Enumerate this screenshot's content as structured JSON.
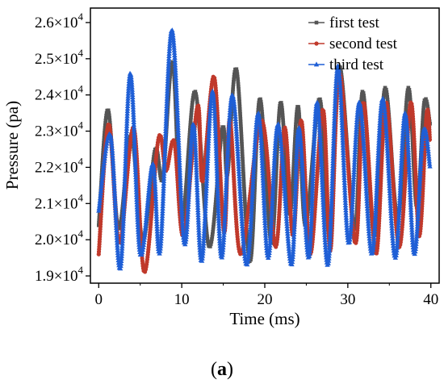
{
  "chart_data": {
    "type": "line",
    "title": "",
    "xlabel": "Time (ms)",
    "ylabel": "Pressure (pa)",
    "xlim": [
      -1,
      41
    ],
    "ylim": [
      18800,
      26400
    ],
    "x_ticks": [
      0,
      10,
      20,
      30,
      40
    ],
    "x_tick_labels": [
      "0",
      "10",
      "20",
      "30",
      "40"
    ],
    "y_ticks": [
      19000,
      20000,
      21000,
      22000,
      23000,
      24000,
      25000,
      26000
    ],
    "y_tick_labels": [
      {
        "mantissa": "1.9×10",
        "exp": "4"
      },
      {
        "mantissa": "2.0×10",
        "exp": "4"
      },
      {
        "mantissa": "2.1×10",
        "exp": "4"
      },
      {
        "mantissa": "2.2×10",
        "exp": "4"
      },
      {
        "mantissa": "2.3×10",
        "exp": "4"
      },
      {
        "mantissa": "2.4×10",
        "exp": "4"
      },
      {
        "mantissa": "2.5×10",
        "exp": "4"
      },
      {
        "mantissa": "2.6×10",
        "exp": "4"
      }
    ],
    "legend_position": "top-right",
    "grid": false,
    "panel_label": {
      "open": "(",
      "bold": "a",
      "close": ")"
    },
    "series": [
      {
        "name": "first test",
        "color": "#555555",
        "marker": "square",
        "points": [
          [
            0,
            20400
          ],
          [
            1.1,
            23600
          ],
          [
            2.4,
            20300
          ],
          [
            3.9,
            22900
          ],
          [
            5.3,
            20000
          ],
          [
            6.8,
            22500
          ],
          [
            7.7,
            21700
          ],
          [
            8.9,
            24900
          ],
          [
            10.0,
            20500
          ],
          [
            11.6,
            24100
          ],
          [
            13.3,
            19800
          ],
          [
            14.9,
            23100
          ],
          [
            15.5,
            21800
          ],
          [
            16.6,
            24700
          ],
          [
            18.2,
            19400
          ],
          [
            19.4,
            23900
          ],
          [
            20.8,
            19900
          ],
          [
            21.9,
            23800
          ],
          [
            23.0,
            20700
          ],
          [
            24.0,
            23700
          ],
          [
            24.9,
            20400
          ],
          [
            26.6,
            23900
          ],
          [
            27.8,
            20100
          ],
          [
            29.0,
            24800
          ],
          [
            30.8,
            20300
          ],
          [
            31.8,
            24100
          ],
          [
            33.2,
            20100
          ],
          [
            34.5,
            24200
          ],
          [
            36.0,
            20600
          ],
          [
            37.3,
            24200
          ],
          [
            38.3,
            20900
          ],
          [
            39.2,
            23800
          ],
          [
            39.9,
            23200
          ]
        ]
      },
      {
        "name": "second test",
        "color": "#c0392b",
        "marker": "circle",
        "points": [
          [
            0,
            19600
          ],
          [
            1.2,
            23200
          ],
          [
            2.5,
            19900
          ],
          [
            4.2,
            23100
          ],
          [
            5.5,
            19100
          ],
          [
            7.2,
            22800
          ],
          [
            8.1,
            21900
          ],
          [
            9.1,
            22700
          ],
          [
            10.2,
            20100
          ],
          [
            11.9,
            23700
          ],
          [
            12.5,
            21600
          ],
          [
            13.9,
            24500
          ],
          [
            15.1,
            20200
          ],
          [
            15.8,
            23300
          ],
          [
            17.1,
            19600
          ],
          [
            19.6,
            23300
          ],
          [
            21.3,
            19800
          ],
          [
            22.4,
            23100
          ],
          [
            23.4,
            20100
          ],
          [
            24.4,
            23300
          ],
          [
            25.5,
            19600
          ],
          [
            27.0,
            23600
          ],
          [
            27.9,
            19700
          ],
          [
            29.0,
            24600
          ],
          [
            30.9,
            19900
          ],
          [
            31.9,
            23800
          ],
          [
            33.4,
            19600
          ],
          [
            34.6,
            23800
          ],
          [
            36.2,
            19800
          ],
          [
            37.6,
            23800
          ],
          [
            38.6,
            20100
          ],
          [
            39.5,
            23500
          ],
          [
            39.9,
            22700
          ]
        ]
      },
      {
        "name": "third test",
        "color": "#1f5fd6",
        "marker": "triangle",
        "points": [
          [
            0,
            20800
          ],
          [
            1.4,
            22900
          ],
          [
            2.6,
            19200
          ],
          [
            3.8,
            24600
          ],
          [
            5.0,
            19600
          ],
          [
            6.5,
            22100
          ],
          [
            7.4,
            19700
          ],
          [
            8.8,
            25800
          ],
          [
            10.3,
            19900
          ],
          [
            11.4,
            23200
          ],
          [
            12.4,
            19400
          ],
          [
            13.7,
            24100
          ],
          [
            14.8,
            19500
          ],
          [
            16.1,
            24000
          ],
          [
            17.8,
            19300
          ],
          [
            19.2,
            23500
          ],
          [
            20.4,
            19500
          ],
          [
            21.6,
            23200
          ],
          [
            23.2,
            19300
          ],
          [
            24.1,
            23100
          ],
          [
            25.3,
            19500
          ],
          [
            26.3,
            23800
          ],
          [
            27.6,
            19300
          ],
          [
            28.8,
            24800
          ],
          [
            30.1,
            19900
          ],
          [
            31.4,
            23800
          ],
          [
            32.9,
            19600
          ],
          [
            34.2,
            23900
          ],
          [
            35.7,
            19500
          ],
          [
            36.9,
            23500
          ],
          [
            38.0,
            19600
          ],
          [
            39.1,
            23000
          ],
          [
            39.9,
            22000
          ]
        ]
      }
    ]
  }
}
